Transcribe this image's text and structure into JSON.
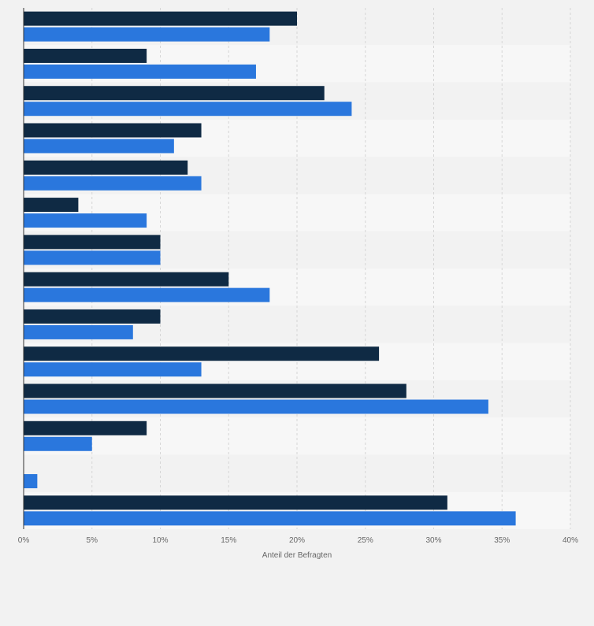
{
  "chart_data": {
    "type": "bar",
    "orientation": "horizontal",
    "xlabel": "Anteil der Befragten",
    "xlim": [
      0,
      40
    ],
    "tick_values": [
      0,
      5,
      10,
      15,
      20,
      25,
      30,
      35,
      40
    ],
    "tick_labels": [
      "0%",
      "5%",
      "10%",
      "15%",
      "20%",
      "25%",
      "30%",
      "35%",
      "40%"
    ],
    "grid": true,
    "series": [
      {
        "color": "#0f2a44",
        "values": [
          20,
          9,
          22,
          13,
          12,
          4,
          10,
          15,
          10,
          26,
          28,
          9,
          0,
          31
        ]
      },
      {
        "color": "#2a77dd",
        "values": [
          18,
          17,
          24,
          11,
          13,
          9,
          10,
          18,
          8,
          13,
          34,
          5,
          1,
          36
        ]
      }
    ]
  }
}
